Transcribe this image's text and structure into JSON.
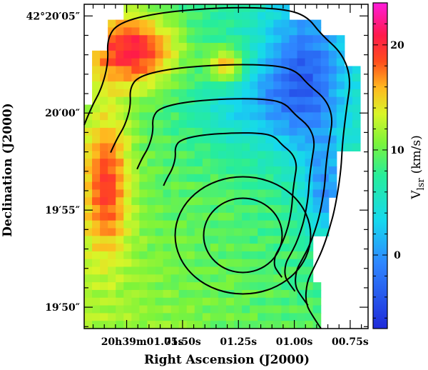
{
  "chart_data": {
    "type": "heatmap",
    "xlabel": "Right Ascension (J2000)",
    "ylabel": "Declination (J2000)",
    "x_ticks": [
      {
        "ra": 1.75,
        "label": "20h39m01.75s"
      },
      {
        "ra": 1.5,
        "label": "01.50s"
      },
      {
        "ra": 1.25,
        "label": "01.25s"
      },
      {
        "ra": 1.0,
        "label": "01.00s"
      },
      {
        "ra": 0.75,
        "label": "00.75s"
      }
    ],
    "y_ticks": [
      {
        "dec": 5,
        "label": "42°20′05″"
      },
      {
        "dec": 0,
        "label": "20′00″"
      },
      {
        "dec": -5,
        "label": "19′55″"
      },
      {
        "dec": -10,
        "label": "19′50″"
      }
    ],
    "xlim_ra_seconds": [
      1.94,
      0.67
    ],
    "ylim_dec_offset_arcsec": [
      -11.1,
      5.6
    ],
    "colorbar": {
      "label": "V",
      "label_subscript": "lsr",
      "label_unit": "(km/s)",
      "range": [
        -7,
        24
      ],
      "ticks": [
        0,
        10,
        20
      ]
    },
    "contour_levels": [
      1,
      2,
      3,
      4,
      5,
      6
    ],
    "contour_peak": {
      "ra": 1.23,
      "dec": -6.3
    }
  }
}
